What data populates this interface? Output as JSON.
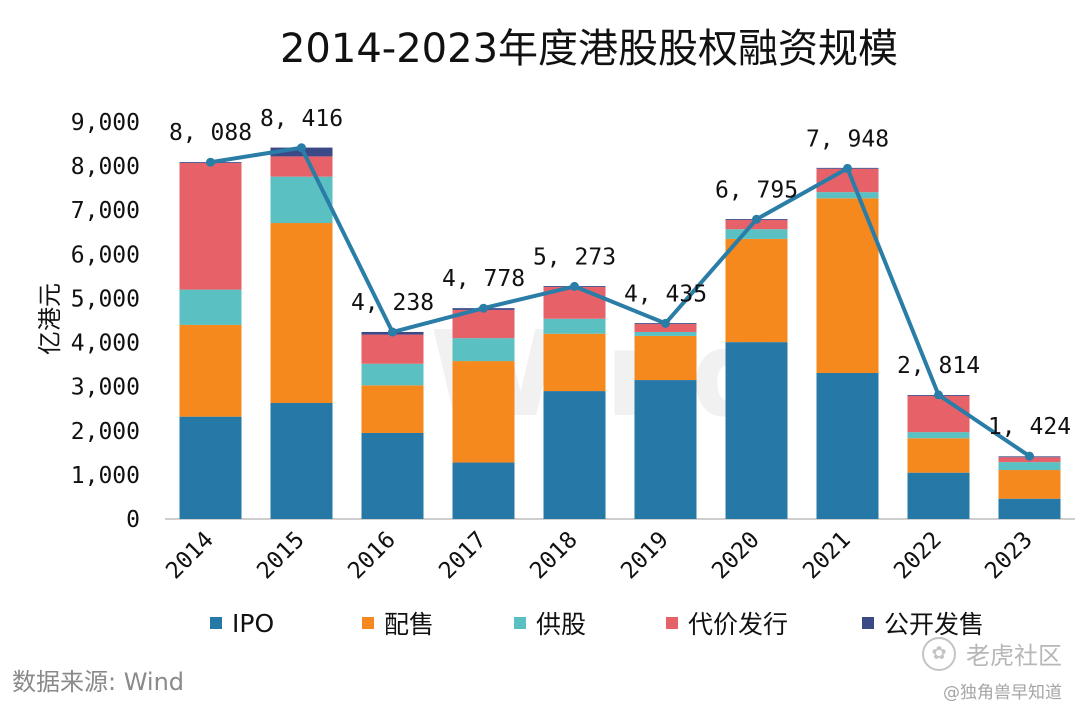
{
  "chart_data": {
    "type": "bar",
    "title": "2014-2023年度港股股权融资规模",
    "ylabel": "亿港元",
    "xlabel": "",
    "ylim": [
      0,
      9000
    ],
    "yticks": [
      "0",
      "1,000",
      "2,000",
      "3,000",
      "4,000",
      "5,000",
      "6,000",
      "7,000",
      "8,000",
      "9,000"
    ],
    "categories": [
      "2014",
      "2015",
      "2016",
      "2017",
      "2018",
      "2019",
      "2020",
      "2021",
      "2022",
      "2023"
    ],
    "stacked": true,
    "series": [
      {
        "name": "IPO",
        "color": "#2678A6",
        "values": [
          2320,
          2630,
          1950,
          1280,
          2900,
          3150,
          4010,
          3310,
          1050,
          460
        ]
      },
      {
        "name": "配售",
        "color": "#F5891E",
        "values": [
          2080,
          4080,
          1080,
          2300,
          1300,
          1000,
          2340,
          3960,
          780,
          650
        ]
      },
      {
        "name": "供股",
        "color": "#5BC0C1",
        "values": [
          800,
          1050,
          490,
          520,
          340,
          90,
          220,
          140,
          140,
          180
        ]
      },
      {
        "name": "代价发行",
        "color": "#E66268",
        "values": [
          2870,
          460,
          660,
          640,
          720,
          180,
          210,
          530,
          820,
          110
        ]
      },
      {
        "name": "公开发售",
        "color": "#3B4A87",
        "values": [
          20,
          200,
          60,
          40,
          20,
          20,
          20,
          20,
          20,
          20
        ]
      }
    ],
    "totals_line": {
      "color": "#2A7DA6",
      "values": [
        8088,
        8416,
        4238,
        4778,
        5273,
        4435,
        6795,
        7948,
        2814,
        1424
      ],
      "labels": [
        "8, 088",
        "8, 416",
        "4, 238",
        "4, 778",
        "5, 273",
        "4, 435",
        "6, 795",
        "7, 948",
        "2, 814",
        "1, 424"
      ]
    },
    "legend_position": "bottom"
  },
  "source": "数据来源: Wind",
  "brand": "老虎社区",
  "author": "@独角兽早知道",
  "watermark": "Wind"
}
